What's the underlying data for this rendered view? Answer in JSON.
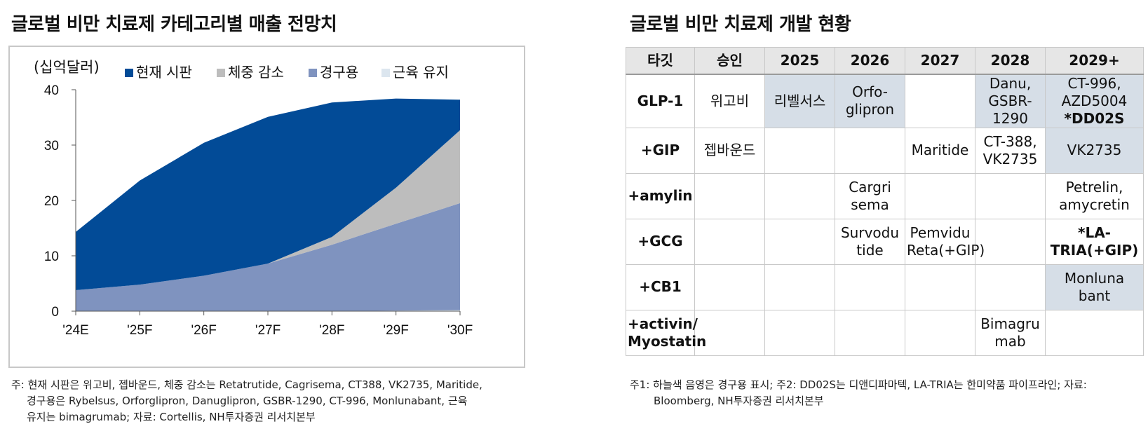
{
  "left_title": "글로벌 비만 치료제 카테고리별 매출 전망치",
  "right_title": "글로벌 비만 치료제 개발 현황",
  "chart_data": {
    "type": "area",
    "stacked": true,
    "unit_label": "(십억달러)",
    "categories": [
      "'24E",
      "'25F",
      "'26F",
      "'27F",
      "'28F",
      "'29F",
      "'30F"
    ],
    "ylim": [
      0,
      40
    ],
    "yticks": [
      0,
      10,
      20,
      30,
      40
    ],
    "legend_position": "top",
    "series": [
      {
        "name": "근육 유지",
        "color": "#dce6ef",
        "values": [
          0.0,
          0.0,
          0.0,
          0.0,
          0.0,
          0.1,
          0.2
        ]
      },
      {
        "name": "경구용",
        "color": "#7f93bf",
        "values": [
          3.8,
          4.8,
          6.4,
          8.6,
          12.0,
          15.7,
          19.3
        ]
      },
      {
        "name": "체중 감소",
        "color": "#bdbdbd",
        "values": [
          0.0,
          0.0,
          0.0,
          0.0,
          1.4,
          6.5,
          13.2
        ]
      },
      {
        "name": "현재 시판",
        "color": "#024b97",
        "values": [
          10.5,
          18.8,
          24.0,
          26.5,
          24.3,
          16.1,
          5.5
        ]
      }
    ],
    "legend_order": [
      "현재 시판",
      "체중 감소",
      "경구용",
      "근육 유지"
    ]
  },
  "table": {
    "headers": [
      "타깃",
      "승인",
      "2025",
      "2026",
      "2027",
      "2028",
      "2029+"
    ],
    "rows": [
      {
        "label": "GLP-1",
        "cells": [
          {
            "text": "위고비",
            "oral": false,
            "bold": false
          },
          {
            "text": "리벨서스",
            "oral": true,
            "bold": false
          },
          {
            "text": "Orfo-\nglipron",
            "oral": true,
            "bold": false
          },
          {
            "text": "",
            "oral": false,
            "bold": false
          },
          {
            "text": "Danu,\nGSBR-\n1290",
            "oral": true,
            "bold": false
          },
          {
            "text": "CT-996,\nAZD5004\n*DD02S",
            "oral": true,
            "bold": false,
            "bold_last_line": true
          }
        ]
      },
      {
        "label": "+GIP",
        "cells": [
          {
            "text": "젭바운드",
            "oral": false,
            "bold": false
          },
          {
            "text": "",
            "oral": false,
            "bold": false
          },
          {
            "text": "",
            "oral": false,
            "bold": false
          },
          {
            "text": "Maritide",
            "oral": false,
            "bold": false
          },
          {
            "text": "CT-388,\nVK2735",
            "oral": false,
            "bold": false
          },
          {
            "text": "VK2735",
            "oral": true,
            "bold": false
          }
        ]
      },
      {
        "label": "+amylin",
        "cells": [
          {
            "text": "",
            "oral": false,
            "bold": false
          },
          {
            "text": "",
            "oral": false,
            "bold": false
          },
          {
            "text": "Cargri\nsema",
            "oral": false,
            "bold": false
          },
          {
            "text": "",
            "oral": false,
            "bold": false
          },
          {
            "text": "",
            "oral": false,
            "bold": false
          },
          {
            "text": "Petrelin,\namycretin",
            "oral": false,
            "bold": false
          }
        ]
      },
      {
        "label": "+GCG",
        "cells": [
          {
            "text": "",
            "oral": false,
            "bold": false
          },
          {
            "text": "",
            "oral": false,
            "bold": false
          },
          {
            "text": "Survodu\ntide",
            "oral": false,
            "bold": false
          },
          {
            "text": "Pemvidu\nReta(+GIP)",
            "oral": false,
            "bold": false
          },
          {
            "text": "",
            "oral": false,
            "bold": false
          },
          {
            "text": "*LA-\nTRIA(+GIP)",
            "oral": false,
            "bold": true
          }
        ]
      },
      {
        "label": "+CB1",
        "cells": [
          {
            "text": "",
            "oral": false,
            "bold": false
          },
          {
            "text": "",
            "oral": false,
            "bold": false
          },
          {
            "text": "",
            "oral": false,
            "bold": false
          },
          {
            "text": "",
            "oral": false,
            "bold": false
          },
          {
            "text": "",
            "oral": false,
            "bold": false
          },
          {
            "text": "Monluna\nbant",
            "oral": true,
            "bold": false
          }
        ]
      },
      {
        "label": "+activin/\nMyostatin",
        "cells": [
          {
            "text": "",
            "oral": false,
            "bold": false
          },
          {
            "text": "",
            "oral": false,
            "bold": false
          },
          {
            "text": "",
            "oral": false,
            "bold": false
          },
          {
            "text": "",
            "oral": false,
            "bold": false
          },
          {
            "text": "Bimagru\nmab",
            "oral": false,
            "bold": false
          },
          {
            "text": "",
            "oral": false,
            "bold": false
          }
        ]
      }
    ]
  },
  "left_note": {
    "line1": "주: 현재 시판은 위고비, 젭바운드, 체중 감소는 Retatrutide, Cagrisema, CT388, VK2735, Maritide,",
    "line2": "경구용은 Rybelsus, Orforglipron, Danuglipron, GSBR-1290, CT-996, Monlunabant, 근육",
    "line3": "유지는 bimagrumab; 자료: Cortellis, NH투자증권 리서치본부"
  },
  "right_note": {
    "line1": "주1: 하늘색 음영은 경구용 표시; 주2: DD02S는 디앤디파마텍, LA-TRIA는 한미약품 파이프라인; 자료:",
    "line2": "Bloomberg, NH투자증권 리서치본부"
  }
}
